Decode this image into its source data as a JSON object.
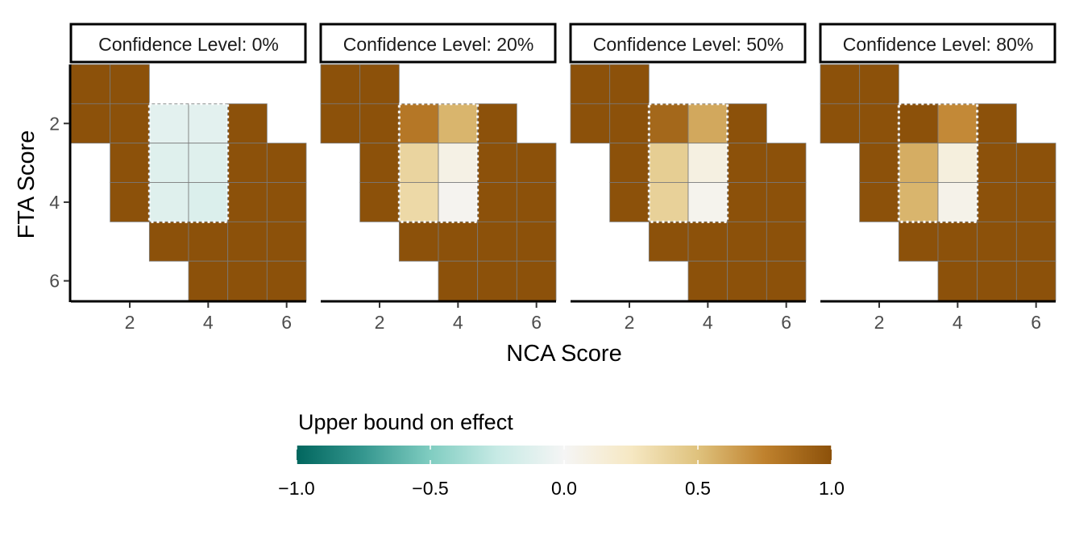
{
  "chart_data": {
    "type": "heatmap",
    "xlabel": "NCA Score",
    "ylabel": "FTA Score",
    "xlim": [
      0.5,
      6.5
    ],
    "ylim": [
      6.5,
      0.5
    ],
    "x_ticks": [
      "2",
      "4",
      "6"
    ],
    "y_ticks": [
      "2",
      "4",
      "6"
    ],
    "panels": [
      {
        "title": "Confidence Level: 0%",
        "cells": [
          [
            1,
            1,
            1.0
          ],
          [
            2,
            1,
            1.0
          ],
          [
            1,
            2,
            1.0
          ],
          [
            2,
            2,
            1.0
          ],
          [
            3,
            2,
            -0.1
          ],
          [
            4,
            2,
            -0.1
          ],
          [
            5,
            2,
            1.0
          ],
          [
            2,
            3,
            1.0
          ],
          [
            3,
            3,
            -0.12
          ],
          [
            4,
            3,
            -0.12
          ],
          [
            5,
            3,
            1.0
          ],
          [
            6,
            3,
            1.0
          ],
          [
            2,
            4,
            1.0
          ],
          [
            3,
            4,
            -0.12
          ],
          [
            4,
            4,
            -0.14
          ],
          [
            5,
            4,
            1.0
          ],
          [
            6,
            4,
            1.0
          ],
          [
            3,
            5,
            1.0
          ],
          [
            4,
            5,
            1.0
          ],
          [
            5,
            5,
            1.0
          ],
          [
            6,
            5,
            1.0
          ],
          [
            4,
            6,
            1.0
          ],
          [
            5,
            6,
            1.0
          ],
          [
            6,
            6,
            1.0
          ]
        ]
      },
      {
        "title": "Confidence Level: 20%",
        "cells": [
          [
            1,
            1,
            1.0
          ],
          [
            2,
            1,
            1.0
          ],
          [
            1,
            2,
            1.0
          ],
          [
            2,
            2,
            1.0
          ],
          [
            3,
            2,
            0.8
          ],
          [
            4,
            2,
            0.55
          ],
          [
            5,
            2,
            1.0
          ],
          [
            2,
            3,
            1.0
          ],
          [
            3,
            3,
            0.38
          ],
          [
            4,
            3,
            0.08
          ],
          [
            5,
            3,
            1.0
          ],
          [
            6,
            3,
            1.0
          ],
          [
            2,
            4,
            1.0
          ],
          [
            3,
            4,
            0.35
          ],
          [
            4,
            4,
            0.03
          ],
          [
            5,
            4,
            1.0
          ],
          [
            6,
            4,
            1.0
          ],
          [
            3,
            5,
            1.0
          ],
          [
            4,
            5,
            1.0
          ],
          [
            5,
            5,
            1.0
          ],
          [
            6,
            5,
            1.0
          ],
          [
            4,
            6,
            1.0
          ],
          [
            5,
            6,
            1.0
          ],
          [
            6,
            6,
            1.0
          ]
        ]
      },
      {
        "title": "Confidence Level: 50%",
        "cells": [
          [
            1,
            1,
            1.0
          ],
          [
            2,
            1,
            1.0
          ],
          [
            1,
            2,
            1.0
          ],
          [
            2,
            2,
            1.0
          ],
          [
            3,
            2,
            0.88
          ],
          [
            4,
            2,
            0.6
          ],
          [
            5,
            2,
            1.0
          ],
          [
            2,
            3,
            1.0
          ],
          [
            3,
            3,
            0.42
          ],
          [
            4,
            3,
            0.1
          ],
          [
            5,
            3,
            1.0
          ],
          [
            6,
            3,
            1.0
          ],
          [
            2,
            4,
            1.0
          ],
          [
            3,
            4,
            0.4
          ],
          [
            4,
            4,
            0.04
          ],
          [
            5,
            4,
            1.0
          ],
          [
            6,
            4,
            1.0
          ],
          [
            3,
            5,
            1.0
          ],
          [
            4,
            5,
            1.0
          ],
          [
            5,
            5,
            1.0
          ],
          [
            6,
            5,
            1.0
          ],
          [
            4,
            6,
            1.0
          ],
          [
            5,
            6,
            1.0
          ],
          [
            6,
            6,
            1.0
          ]
        ]
      },
      {
        "title": "Confidence Level: 80%",
        "cells": [
          [
            1,
            1,
            1.0
          ],
          [
            2,
            1,
            1.0
          ],
          [
            1,
            2,
            1.0
          ],
          [
            2,
            2,
            1.0
          ],
          [
            3,
            2,
            1.0
          ],
          [
            4,
            2,
            0.72
          ],
          [
            5,
            2,
            1.0
          ],
          [
            2,
            3,
            1.0
          ],
          [
            3,
            3,
            0.58
          ],
          [
            4,
            3,
            0.12
          ],
          [
            5,
            3,
            1.0
          ],
          [
            6,
            3,
            1.0
          ],
          [
            2,
            4,
            1.0
          ],
          [
            3,
            4,
            0.55
          ],
          [
            4,
            4,
            0.06
          ],
          [
            5,
            4,
            1.0
          ],
          [
            6,
            4,
            1.0
          ],
          [
            3,
            5,
            1.0
          ],
          [
            4,
            5,
            1.0
          ],
          [
            5,
            5,
            1.0
          ],
          [
            6,
            5,
            1.0
          ],
          [
            4,
            6,
            1.0
          ],
          [
            5,
            6,
            1.0
          ],
          [
            6,
            6,
            1.0
          ]
        ]
      }
    ],
    "highlight_region": {
      "x_from": 3,
      "x_to": 4,
      "y_from": 2,
      "y_to": 4
    },
    "colorbar": {
      "title": "Upper bound on effect",
      "min": -1.0,
      "max": 1.0,
      "ticks": [
        "−1.0",
        "−0.5",
        "0.0",
        "0.5",
        "1.0"
      ],
      "tick_values": [
        -1.0,
        -0.5,
        0.0,
        0.5,
        1.0
      ],
      "stops": [
        "#01665e",
        "#35978f",
        "#80cdc1",
        "#c7eae5",
        "#f5f5f5",
        "#f6e8c3",
        "#dfc27d",
        "#bf812d",
        "#8c510a"
      ]
    }
  }
}
